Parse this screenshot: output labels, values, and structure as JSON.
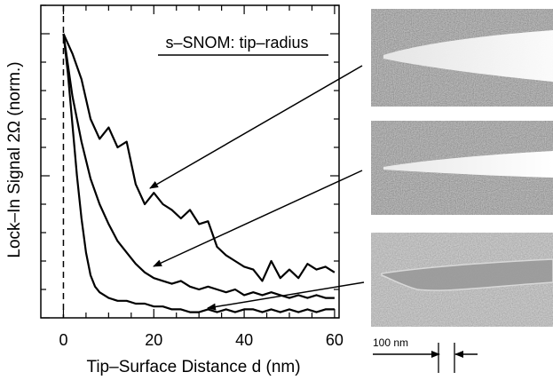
{
  "chart_data": {
    "type": "line",
    "xlabel": "Tip–Surface Distance d (nm)",
    "ylabel": "Lock–In Signal 2Ω (norm.)",
    "xlim": [
      -5,
      61
    ],
    "ylim": [
      0,
      1.1
    ],
    "x_ticks": [
      0,
      20,
      40,
      60
    ],
    "x_tick_labels": [
      "0",
      "20",
      "40",
      "60"
    ],
    "grid": false,
    "legend": "none",
    "annotation": "s–SNOM: tip–radius",
    "contact_line_x": 0,
    "series": [
      {
        "x": [
          0,
          2,
          4,
          6,
          8,
          10,
          12,
          14,
          16,
          18,
          20,
          22,
          24,
          26,
          28,
          30,
          32,
          34,
          36,
          38,
          40,
          42,
          44,
          46,
          48,
          50,
          52,
          54,
          56,
          58,
          60
        ],
        "values": [
          1.0,
          0.93,
          0.84,
          0.7,
          0.63,
          0.67,
          0.6,
          0.62,
          0.47,
          0.4,
          0.44,
          0.4,
          0.38,
          0.35,
          0.38,
          0.33,
          0.34,
          0.25,
          0.22,
          0.2,
          0.18,
          0.17,
          0.13,
          0.2,
          0.14,
          0.17,
          0.14,
          0.19,
          0.17,
          0.18,
          0.16
        ]
      },
      {
        "x": [
          0,
          2,
          4,
          6,
          8,
          10,
          12,
          14,
          16,
          18,
          20,
          22,
          24,
          26,
          28,
          30,
          32,
          34,
          36,
          38,
          40,
          42,
          44,
          46,
          48,
          50,
          52,
          54,
          56,
          58,
          60
        ],
        "values": [
          1.0,
          0.78,
          0.62,
          0.49,
          0.4,
          0.33,
          0.27,
          0.23,
          0.19,
          0.16,
          0.14,
          0.13,
          0.12,
          0.13,
          0.11,
          0.1,
          0.11,
          0.1,
          0.09,
          0.1,
          0.08,
          0.09,
          0.08,
          0.09,
          0.08,
          0.07,
          0.08,
          0.07,
          0.08,
          0.07,
          0.07
        ]
      },
      {
        "x": [
          0,
          1,
          2,
          3,
          4,
          5,
          6,
          7,
          8,
          10,
          12,
          14,
          16,
          18,
          20,
          22,
          24,
          26,
          28,
          30,
          32,
          34,
          36,
          38,
          40,
          42,
          44,
          46,
          48,
          50,
          52,
          54,
          56,
          58,
          60
        ],
        "values": [
          1.0,
          0.86,
          0.68,
          0.5,
          0.35,
          0.23,
          0.15,
          0.11,
          0.09,
          0.07,
          0.06,
          0.06,
          0.05,
          0.05,
          0.04,
          0.04,
          0.03,
          0.03,
          0.02,
          0.02,
          0.03,
          0.02,
          0.03,
          0.02,
          0.03,
          0.03,
          0.02,
          0.03,
          0.02,
          0.03,
          0.02,
          0.03,
          0.02,
          0.03,
          0.03
        ]
      }
    ]
  },
  "scale_bar": {
    "label": "100 nm"
  },
  "colors": {
    "line": "#000000",
    "background": "#ffffff"
  }
}
